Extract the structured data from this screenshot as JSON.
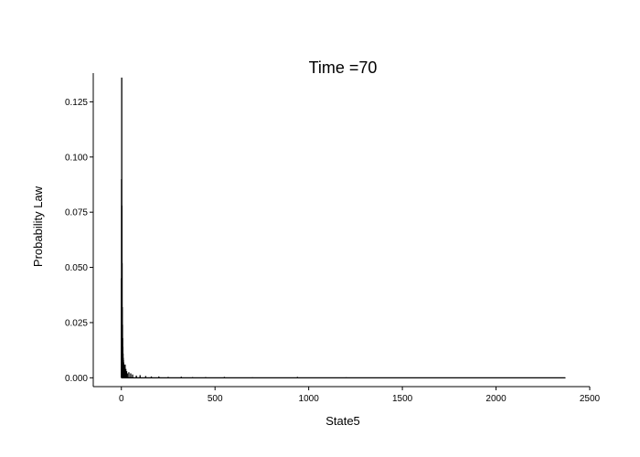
{
  "chart_data": {
    "type": "bar",
    "title": "Time =70",
    "xlabel": "State5",
    "ylabel": "Probability Law",
    "xlim": [
      -150,
      2500
    ],
    "ylim": [
      -0.004,
      0.138
    ],
    "xticks": [
      0,
      500,
      1000,
      1500,
      2000,
      2500
    ],
    "xtick_labels": [
      "0",
      "500",
      "1000",
      "1500",
      "2000",
      "2500"
    ],
    "yticks": [
      0.0,
      0.025,
      0.05,
      0.075,
      0.1,
      0.125
    ],
    "ytick_labels": [
      "0.000",
      "0.025",
      "0.050",
      "0.075",
      "0.100",
      "0.125"
    ],
    "grid": false,
    "color": "#000000",
    "x": [
      0,
      1,
      2,
      3,
      4,
      5,
      6,
      7,
      8,
      9,
      10,
      11,
      12,
      14,
      16,
      18,
      20,
      24,
      28,
      32,
      40,
      50,
      60,
      80,
      100,
      130,
      160,
      200,
      250,
      320,
      380,
      450,
      550,
      700,
      940,
      1200,
      1600,
      2000,
      2370
    ],
    "values": [
      0.045,
      0.09,
      0.136,
      0.078,
      0.052,
      0.032,
      0.024,
      0.018,
      0.014,
      0.011,
      0.009,
      0.008,
      0.007,
      0.006,
      0.005,
      0.004,
      0.006,
      0.004,
      0.003,
      0.002,
      0.0025,
      0.002,
      0.0015,
      0.001,
      0.0012,
      0.0008,
      0.0006,
      0.0006,
      0.0004,
      0.0005,
      0.0003,
      0.0003,
      0.0004,
      0.0002,
      0.0004,
      0.0002,
      0.0001,
      0.0001,
      0.0001
    ]
  }
}
